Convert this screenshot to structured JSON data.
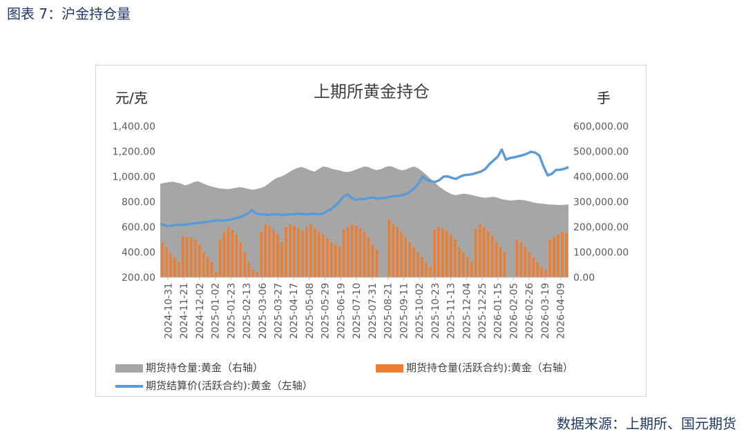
{
  "figure_title": "图表 7：沪金持仓量",
  "source": "数据来源：上期所、国元期货",
  "colors": {
    "text_blue": "#1f3864",
    "gray_area": "#a6a6a6",
    "orange_bar": "#ed7d31",
    "blue_line": "#5b9bd5"
  },
  "chart_data": {
    "type": "combo",
    "title": "上期所黄金持仓",
    "left_unit": "元/克",
    "right_unit": "手",
    "y_left": {
      "min": 200,
      "max": 1400,
      "ticks": [
        "1,400.00",
        "1,200.00",
        "1,000.00",
        "800.00",
        "600.00",
        "400.00",
        "200.00"
      ]
    },
    "y_right": {
      "min": 0,
      "max": 600000,
      "ticks": [
        "600,000.00",
        "500,000.00",
        "400,000.00",
        "300,000.00",
        "200,000.00",
        "100,000.00",
        "0.00"
      ]
    },
    "x_tick_labels": [
      "2024-10-31",
      "2024-11-21",
      "2024-12-02",
      "2025-01-02",
      "2025-01-23",
      "2025-02-13",
      "2025-03-06",
      "2025-03-27",
      "2025-04-17",
      "2025-05-08",
      "2025-05-29",
      "2025-06-19",
      "2025-07-10",
      "2025-07-31",
      "2025-08-21",
      "2025-09-11",
      "2025-10-02",
      "2025-10-23",
      "2025-11-13",
      "2025-12-04",
      "2025-12-25",
      "2026-01-15",
      "2026-02-05",
      "2026-02-26",
      "2026-03-19",
      "2026-04-09"
    ],
    "series": [
      {
        "name": "期货持仓量:黄金（右轴）",
        "kind": "area",
        "axis": "right",
        "values": [
          372000,
          375000,
          378000,
          380000,
          376000,
          372000,
          365000,
          370000,
          378000,
          382000,
          375000,
          368000,
          362000,
          358000,
          354000,
          352000,
          350000,
          352000,
          355000,
          358000,
          356000,
          352000,
          348000,
          350000,
          354000,
          360000,
          372000,
          385000,
          395000,
          400000,
          408000,
          418000,
          428000,
          435000,
          438000,
          432000,
          425000,
          420000,
          430000,
          440000,
          438000,
          432000,
          428000,
          425000,
          420000,
          418000,
          422000,
          428000,
          435000,
          440000,
          438000,
          430000,
          426000,
          430000,
          438000,
          442000,
          438000,
          430000,
          425000,
          428000,
          436000,
          440000,
          432000,
          420000,
          405000,
          390000,
          375000,
          360000,
          348000,
          338000,
          330000,
          326000,
          330000,
          332000,
          330000,
          326000,
          322000,
          318000,
          316000,
          318000,
          320000,
          316000,
          310000,
          308000,
          305000,
          306000,
          308000,
          307000,
          304000,
          300000,
          296000,
          294000,
          292000,
          290000,
          289000,
          288000,
          287000,
          288000,
          290000
        ]
      },
      {
        "name": "期货持仓量(活跃合约):黄金（右轴）",
        "kind": "bar",
        "axis": "right",
        "values": [
          140000,
          120000,
          95000,
          80000,
          60000,
          165000,
          160000,
          158000,
          150000,
          130000,
          100000,
          80000,
          60000,
          20000,
          150000,
          180000,
          200000,
          190000,
          170000,
          140000,
          100000,
          60000,
          30000,
          20000,
          180000,
          210000,
          205000,
          190000,
          170000,
          140000,
          200000,
          210000,
          205000,
          195000,
          185000,
          200000,
          210000,
          195000,
          180000,
          170000,
          155000,
          140000,
          130000,
          120000,
          190000,
          200000,
          210000,
          205000,
          195000,
          180000,
          160000,
          130000,
          110000,
          0,
          0,
          230000,
          210000,
          200000,
          180000,
          160000,
          140000,
          120000,
          100000,
          80000,
          60000,
          40000,
          190000,
          200000,
          195000,
          185000,
          170000,
          150000,
          120000,
          100000,
          80000,
          60000,
          190000,
          210000,
          200000,
          185000,
          165000,
          140000,
          120000,
          100000,
          0,
          0,
          150000,
          140000,
          120000,
          100000,
          80000,
          60000,
          40000,
          30000,
          150000,
          160000,
          170000,
          180000,
          175000
        ]
      },
      {
        "name": "期货结算价(活跃合约):黄金（左轴）",
        "kind": "line",
        "axis": "left",
        "values": [
          625,
          615,
          605,
          612,
          618,
          615,
          620,
          622,
          628,
          632,
          636,
          640,
          645,
          650,
          652,
          650,
          655,
          660,
          668,
          676,
          690,
          706,
          735,
          708,
          700,
          702,
          695,
          700,
          702,
          695,
          698,
          700,
          702,
          706,
          704,
          700,
          703,
          705,
          700,
          705,
          725,
          740,
          770,
          800,
          842,
          858,
          830,
          815,
          820,
          822,
          830,
          835,
          826,
          828,
          830,
          840,
          845,
          846,
          852,
          862,
          882,
          908,
          945,
          1000,
          975,
          962,
          958,
          972,
          1000,
          1002,
          990,
          982,
          1000,
          1012,
          1015,
          1020,
          1030,
          1040,
          1060,
          1098,
          1128,
          1158,
          1215,
          1135,
          1148,
          1153,
          1162,
          1170,
          1182,
          1198,
          1190,
          1168,
          1082,
          1010,
          1022,
          1053,
          1054,
          1062,
          1075
        ]
      }
    ]
  }
}
